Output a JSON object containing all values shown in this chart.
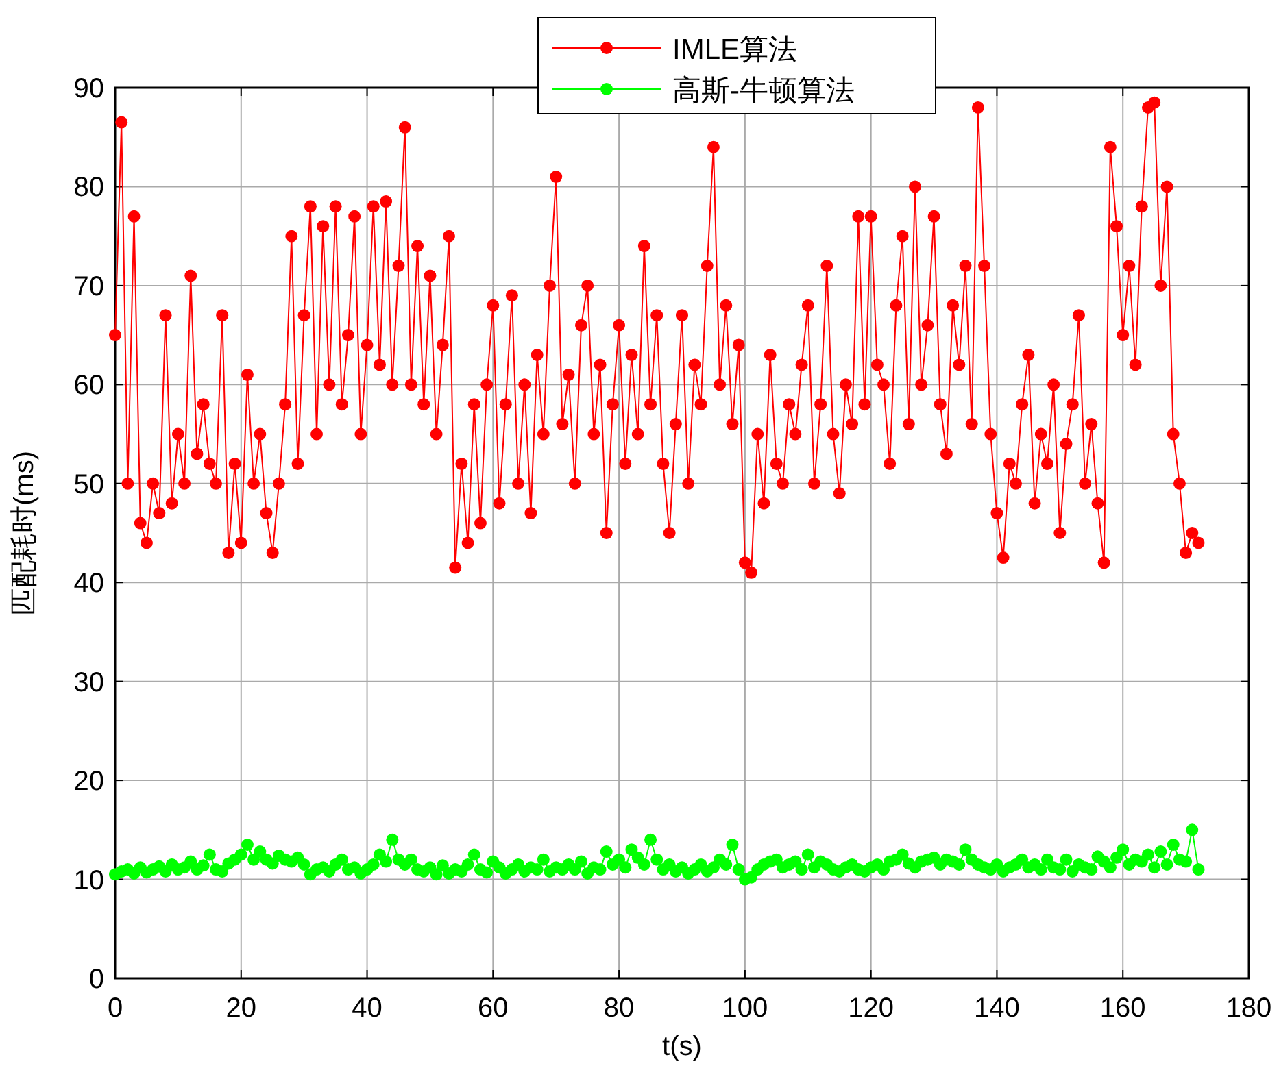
{
  "chart_data": {
    "type": "line",
    "xlabel": "t(s)",
    "ylabel": "匹配耗时(ms)",
    "xlim": [
      0,
      180
    ],
    "xticks": [
      0,
      20,
      40,
      60,
      80,
      100,
      120,
      140,
      160,
      180
    ],
    "ylim": [
      0,
      90
    ],
    "yticks": [
      0,
      10,
      20,
      30,
      40,
      50,
      60,
      70,
      80,
      90
    ],
    "grid": true,
    "legend": "top",
    "marker": "circle",
    "x": [
      0,
      1,
      2,
      3,
      4,
      5,
      6,
      7,
      8,
      9,
      10,
      11,
      12,
      13,
      14,
      15,
      16,
      17,
      18,
      19,
      20,
      21,
      22,
      23,
      24,
      25,
      26,
      27,
      28,
      29,
      30,
      31,
      32,
      33,
      34,
      35,
      36,
      37,
      38,
      39,
      40,
      41,
      42,
      43,
      44,
      45,
      46,
      47,
      48,
      49,
      50,
      51,
      52,
      53,
      54,
      55,
      56,
      57,
      58,
      59,
      60,
      61,
      62,
      63,
      64,
      65,
      66,
      67,
      68,
      69,
      70,
      71,
      72,
      73,
      74,
      75,
      76,
      77,
      78,
      79,
      80,
      81,
      82,
      83,
      84,
      85,
      86,
      87,
      88,
      89,
      90,
      91,
      92,
      93,
      94,
      95,
      96,
      97,
      98,
      99,
      100,
      101,
      102,
      103,
      104,
      105,
      106,
      107,
      108,
      109,
      110,
      111,
      112,
      113,
      114,
      115,
      116,
      117,
      118,
      119,
      120,
      121,
      122,
      123,
      124,
      125,
      126,
      127,
      128,
      129,
      130,
      131,
      132,
      133,
      134,
      135,
      136,
      137,
      138,
      139,
      140,
      141,
      142,
      143,
      144,
      145,
      146,
      147,
      148,
      149,
      150,
      151,
      152,
      153,
      154,
      155,
      156,
      157,
      158,
      159,
      160,
      161,
      162,
      163,
      164,
      165,
      166,
      167,
      168,
      169,
      170,
      171,
      172
    ],
    "series": [
      {
        "name": "IMLE算法",
        "color": "#ff0000",
        "values": [
          65,
          86.5,
          50,
          77,
          46,
          44,
          50,
          47,
          67,
          48,
          55,
          50,
          71,
          53,
          58,
          52,
          50,
          67,
          43,
          52,
          44,
          61,
          50,
          55,
          47,
          43,
          50,
          58,
          75,
          52,
          67,
          78,
          55,
          76,
          60,
          78,
          58,
          65,
          77,
          55,
          64,
          78,
          62,
          78.5,
          60,
          72,
          86,
          60,
          74,
          58,
          71,
          55,
          64,
          75,
          41.5,
          52,
          44,
          58,
          46,
          60,
          68,
          48,
          58,
          69,
          50,
          60,
          47,
          63,
          55,
          70,
          81,
          56,
          61,
          50,
          66,
          70,
          55,
          62,
          45,
          58,
          66,
          52,
          63,
          55,
          74,
          58,
          67,
          52,
          45,
          56,
          67,
          50,
          62,
          58,
          72,
          84,
          60,
          68,
          56,
          64,
          42,
          41,
          55,
          48,
          63,
          52,
          50,
          58,
          55,
          62,
          68,
          50,
          58,
          72,
          55,
          49,
          60,
          56,
          77,
          58,
          77,
          62,
          60,
          52,
          68,
          75,
          56,
          80,
          60,
          66,
          77,
          58,
          53,
          68,
          62,
          72,
          56,
          88,
          72,
          55,
          47,
          42.5,
          52,
          50,
          58,
          63,
          48,
          55,
          52,
          60,
          45,
          54,
          58,
          67,
          50,
          56,
          48,
          42,
          84,
          76,
          65,
          72,
          62,
          78,
          88,
          88.5,
          70,
          80,
          55,
          50,
          43,
          45,
          44
        ]
      },
      {
        "name": "高斯-牛顿算法",
        "color": "#00ff00",
        "values": [
          10.5,
          10.8,
          11,
          10.6,
          11.2,
          10.7,
          11,
          11.3,
          10.8,
          11.5,
          11,
          11.2,
          11.8,
          11,
          11.4,
          12.5,
          11,
          10.8,
          11.6,
          12,
          12.5,
          13.5,
          12,
          12.8,
          12,
          11.6,
          12.4,
          12,
          11.8,
          12.2,
          11.5,
          10.5,
          11,
          11.2,
          10.8,
          11.5,
          12,
          11,
          11.2,
          10.6,
          11,
          11.5,
          12.5,
          11.8,
          14,
          12,
          11.5,
          12,
          11,
          10.8,
          11.2,
          10.5,
          11.4,
          10.6,
          11,
          10.8,
          11.5,
          12.5,
          11,
          10.7,
          11.8,
          11.2,
          10.6,
          11,
          11.5,
          10.8,
          11.2,
          11,
          12,
          10.8,
          11.2,
          11,
          11.5,
          11,
          11.8,
          10.6,
          11.2,
          11,
          12.8,
          11.5,
          12,
          11.2,
          13,
          12.2,
          11.5,
          14,
          12,
          11,
          11.5,
          10.8,
          11.2,
          10.6,
          11,
          11.5,
          10.8,
          11.2,
          12,
          11.5,
          13.5,
          11,
          10,
          10.2,
          11,
          11.5,
          11.8,
          12,
          11.2,
          11.5,
          11.8,
          11,
          12.5,
          11.2,
          11.8,
          11.5,
          11,
          10.8,
          11.2,
          11.5,
          11,
          10.8,
          11.2,
          11.5,
          11,
          11.8,
          12,
          12.5,
          11.6,
          11.2,
          11.8,
          12,
          12.2,
          11.5,
          12,
          11.8,
          11.5,
          13,
          12,
          11.5,
          11.2,
          11,
          11.5,
          10.8,
          11.2,
          11.5,
          12,
          11.2,
          11.5,
          11,
          12,
          11.2,
          11,
          12,
          10.8,
          11.5,
          11.2,
          11,
          12.3,
          11.8,
          11.2,
          12.2,
          13,
          11.5,
          12,
          11.8,
          12.5,
          11.2,
          12.8,
          11.5,
          13.5,
          12,
          11.8,
          15,
          11
        ]
      }
    ]
  }
}
